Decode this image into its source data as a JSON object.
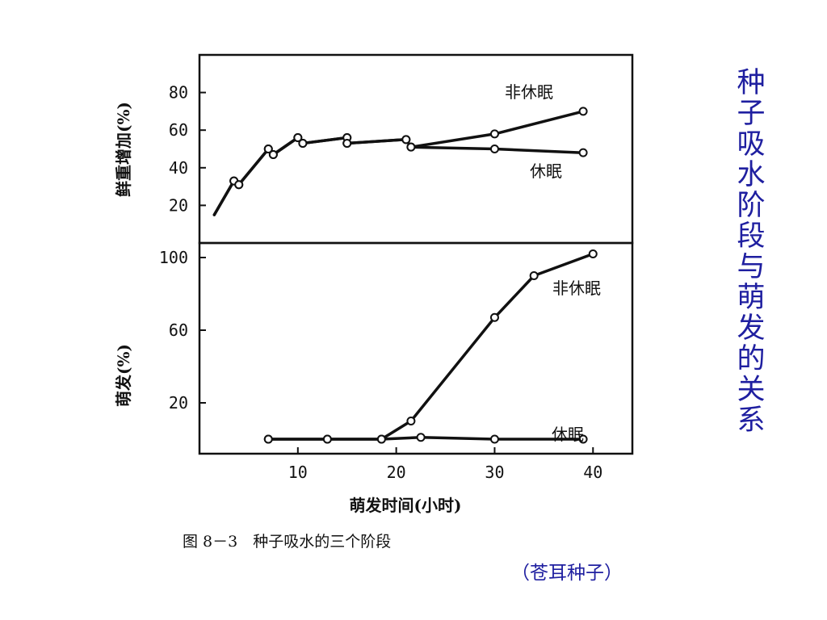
{
  "slide": {
    "title": "种子吸水阶段与萌发的关系",
    "caption": "图 8－3　种子吸水的三个阶段",
    "source_note": "（苍耳种子）",
    "title_color": "#1f1fa0"
  },
  "chart_data": [
    {
      "type": "line",
      "ylabel": "鲜重增加(%)",
      "xlabel": "",
      "xlim": [
        0,
        44
      ],
      "ylim": [
        0,
        100
      ],
      "yticks": [
        20,
        40,
        60,
        80
      ],
      "series": [
        {
          "name": "非休眠",
          "x": [
            1.5,
            3.5,
            4,
            7,
            7.5,
            10,
            10.5,
            15,
            15,
            21,
            21.5,
            30,
            39
          ],
          "y": [
            15,
            33,
            31,
            50,
            47,
            56,
            53,
            56,
            53,
            55,
            51,
            58,
            70
          ]
        },
        {
          "name": "休眠",
          "x": [
            1.5,
            3.5,
            4,
            7,
            7.5,
            10,
            10.5,
            15,
            15,
            21,
            21.5,
            30,
            39
          ],
          "y": [
            15,
            33,
            31,
            50,
            47,
            56,
            53,
            56,
            53,
            55,
            51,
            50,
            48
          ]
        }
      ]
    },
    {
      "type": "line",
      "ylabel": "萌发(%)",
      "xlabel": "萌发时间(小时)",
      "xlim": [
        0,
        44
      ],
      "ylim": [
        -8,
        108
      ],
      "yticks": [
        20,
        60,
        100
      ],
      "xticks": [
        10,
        20,
        30,
        40
      ],
      "series": [
        {
          "name": "非休眠",
          "x": [
            7,
            13,
            18.5,
            21.5,
            30,
            34,
            40
          ],
          "y": [
            0,
            0,
            0,
            10,
            67,
            90,
            102
          ]
        },
        {
          "name": "休眠",
          "x": [
            7,
            13,
            18.5,
            22.5,
            30,
            39
          ],
          "y": [
            0,
            0,
            0,
            1,
            0,
            0
          ]
        }
      ]
    }
  ]
}
